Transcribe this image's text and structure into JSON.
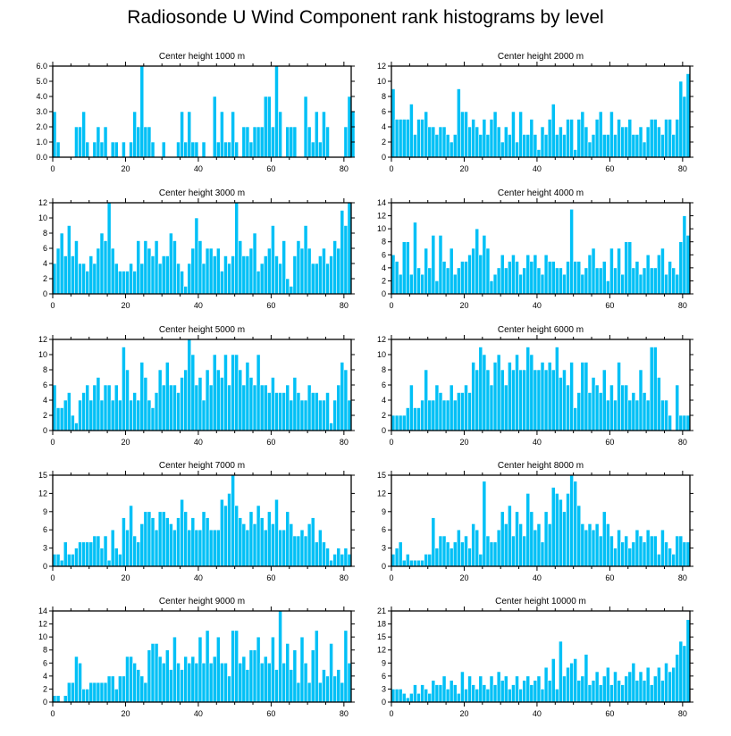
{
  "title": "Radiosonde U Wind Component rank histograms by level",
  "colors": {
    "bar": "#00c0f6",
    "bar_edge": "#ffffff",
    "axis": "#000000"
  },
  "chart_data": [
    {
      "type": "bar",
      "title": "Center height 1000 m",
      "xlabel": "",
      "ylabel": "",
      "xlim": [
        0,
        82
      ],
      "xticks": [
        0,
        20,
        40,
        60,
        80
      ],
      "ylim": [
        0,
        6
      ],
      "yticks": [
        "0.0",
        "1.0",
        "2.0",
        "3.0",
        "4.0",
        "5.0",
        "6.0"
      ],
      "values": [
        3,
        1,
        0,
        0,
        0,
        0,
        2,
        2,
        3,
        1,
        0,
        1,
        2,
        1,
        2,
        0,
        1,
        1,
        0,
        1,
        0,
        1,
        3,
        2,
        6,
        2,
        2,
        1,
        0,
        0,
        1,
        0,
        0,
        0,
        1,
        3,
        1,
        3,
        1,
        1,
        0,
        1,
        0,
        0,
        4,
        1,
        3,
        1,
        1,
        3,
        1,
        0,
        2,
        2,
        1,
        2,
        2,
        2,
        4,
        4,
        2,
        6,
        3,
        0,
        2,
        2,
        2,
        0,
        0,
        4,
        2,
        1,
        3,
        1,
        3,
        2,
        0,
        0,
        0,
        0,
        2,
        4,
        3
      ]
    },
    {
      "type": "bar",
      "title": "Center height 2000 m",
      "xlabel": "",
      "ylabel": "",
      "xlim": [
        0,
        82
      ],
      "xticks": [
        0,
        20,
        40,
        60,
        80
      ],
      "ylim": [
        0,
        12
      ],
      "yticks": [
        "0",
        "2",
        "4",
        "6",
        "8",
        "10",
        "12"
      ],
      "values": [
        9,
        5,
        5,
        5,
        5,
        7,
        3,
        5,
        5,
        6,
        4,
        4,
        3,
        4,
        4,
        3,
        2,
        3,
        9,
        6,
        6,
        4,
        5,
        4,
        3,
        5,
        3,
        5,
        6,
        4,
        2,
        4,
        3,
        6,
        2,
        6,
        3,
        3,
        5,
        3,
        1,
        4,
        3,
        5,
        7,
        3,
        4,
        3,
        5,
        5,
        1,
        5,
        6,
        4,
        2,
        3,
        5,
        6,
        3,
        3,
        6,
        3,
        5,
        4,
        4,
        5,
        3,
        3,
        4,
        2,
        4,
        5,
        5,
        4,
        3,
        5,
        5,
        3,
        5,
        10,
        8,
        11
      ]
    },
    {
      "type": "bar",
      "title": "Center height 3000 m",
      "xlabel": "",
      "ylabel": "",
      "xlim": [
        0,
        82
      ],
      "xticks": [
        0,
        20,
        40,
        60,
        80
      ],
      "ylim": [
        0,
        12
      ],
      "yticks": [
        "0",
        "2",
        "4",
        "6",
        "8",
        "10",
        "12"
      ],
      "values": [
        4,
        6,
        8,
        5,
        9,
        5,
        7,
        4,
        4,
        3,
        5,
        4,
        6,
        8,
        7,
        12,
        6,
        4,
        3,
        3,
        3,
        4,
        3,
        7,
        4,
        7,
        6,
        5,
        7,
        4,
        5,
        5,
        8,
        7,
        4,
        3,
        1,
        4,
        6,
        10,
        7,
        4,
        6,
        6,
        5,
        6,
        3,
        5,
        4,
        5,
        12,
        7,
        5,
        5,
        6,
        8,
        3,
        4,
        5,
        6,
        9,
        5,
        4,
        7,
        2,
        1,
        5,
        7,
        6,
        9,
        6,
        4,
        4,
        5,
        6,
        4,
        5,
        7,
        6,
        11,
        9,
        12
      ]
    },
    {
      "type": "bar",
      "title": "Center height 4000 m",
      "xlabel": "",
      "ylabel": "",
      "xlim": [
        0,
        82
      ],
      "xticks": [
        0,
        20,
        40,
        60,
        80
      ],
      "ylim": [
        0,
        14
      ],
      "yticks": [
        "0",
        "2",
        "4",
        "6",
        "8",
        "10",
        "12",
        "14"
      ],
      "values": [
        6,
        5,
        3,
        8,
        8,
        3,
        11,
        4,
        3,
        7,
        4,
        9,
        2,
        9,
        5,
        4,
        7,
        3,
        4,
        5,
        5,
        6,
        7,
        10,
        6,
        9,
        7,
        2,
        3,
        4,
        6,
        4,
        5,
        6,
        5,
        3,
        4,
        6,
        5,
        6,
        4,
        3,
        6,
        5,
        5,
        4,
        4,
        3,
        5,
        13,
        5,
        5,
        3,
        4,
        6,
        7,
        4,
        4,
        5,
        2,
        7,
        4,
        7,
        3,
        8,
        8,
        4,
        5,
        3,
        4,
        6,
        4,
        4,
        6,
        7,
        3,
        5,
        4,
        3,
        8,
        12,
        9
      ]
    },
    {
      "type": "bar",
      "title": "Center height 5000 m",
      "xlabel": "",
      "ylabel": "",
      "xlim": [
        0,
        82
      ],
      "xticks": [
        0,
        20,
        40,
        60,
        80
      ],
      "ylim": [
        0,
        12
      ],
      "yticks": [
        "0",
        "2",
        "4",
        "6",
        "8",
        "10",
        "12"
      ],
      "values": [
        6,
        3,
        3,
        4,
        5,
        2,
        1,
        4,
        5,
        6,
        4,
        6,
        7,
        4,
        6,
        6,
        4,
        6,
        4,
        11,
        8,
        4,
        5,
        4,
        9,
        7,
        4,
        3,
        5,
        8,
        6,
        9,
        6,
        6,
        5,
        7,
        8,
        12,
        10,
        6,
        7,
        4,
        8,
        6,
        10,
        8,
        7,
        10,
        6,
        10,
        10,
        8,
        6,
        9,
        7,
        6,
        10,
        6,
        6,
        5,
        7,
        5,
        5,
        5,
        6,
        4,
        7,
        5,
        4,
        4,
        6,
        5,
        5,
        4,
        4,
        5,
        1,
        4,
        6,
        9,
        8,
        4
      ]
    },
    {
      "type": "bar",
      "title": "Center height 6000 m",
      "xlabel": "",
      "ylabel": "",
      "xlim": [
        0,
        82
      ],
      "xticks": [
        0,
        20,
        40,
        60,
        80
      ],
      "ylim": [
        0,
        12
      ],
      "yticks": [
        "0",
        "2",
        "4",
        "6",
        "8",
        "10",
        "12"
      ],
      "values": [
        2,
        2,
        2,
        2,
        3,
        6,
        3,
        3,
        4,
        8,
        4,
        4,
        6,
        5,
        4,
        4,
        6,
        4,
        5,
        5,
        6,
        5,
        9,
        8,
        11,
        10,
        8,
        6,
        9,
        10,
        8,
        6,
        9,
        8,
        10,
        8,
        8,
        11,
        10,
        8,
        8,
        9,
        8,
        9,
        8,
        11,
        7,
        8,
        6,
        9,
        3,
        5,
        9,
        9,
        5,
        7,
        6,
        5,
        8,
        4,
        6,
        4,
        9,
        6,
        6,
        4,
        5,
        4,
        8,
        5,
        4,
        11,
        11,
        7,
        4,
        4,
        2,
        0,
        6,
        2,
        2,
        2
      ]
    },
    {
      "type": "bar",
      "title": "Center height 7000 m",
      "xlabel": "",
      "ylabel": "",
      "xlim": [
        0,
        82
      ],
      "xticks": [
        0,
        20,
        40,
        60,
        80
      ],
      "ylim": [
        0,
        15
      ],
      "yticks": [
        "0",
        "3",
        "6",
        "9",
        "12",
        "15"
      ],
      "values": [
        2,
        2,
        1,
        4,
        2,
        2,
        3,
        4,
        4,
        4,
        4,
        5,
        5,
        3,
        5,
        1,
        6,
        3,
        2,
        8,
        6,
        10,
        5,
        4,
        7,
        9,
        9,
        8,
        6,
        9,
        9,
        8,
        7,
        6,
        8,
        11,
        9,
        6,
        8,
        6,
        6,
        9,
        8,
        6,
        6,
        6,
        11,
        10,
        12,
        15,
        10,
        8,
        7,
        6,
        9,
        7,
        10,
        8,
        6,
        9,
        7,
        11,
        6,
        6,
        9,
        7,
        5,
        5,
        6,
        5,
        7,
        8,
        4,
        6,
        4,
        3,
        1,
        2,
        3,
        2,
        3,
        2
      ]
    },
    {
      "type": "bar",
      "title": "Center height 8000 m",
      "xlabel": "",
      "ylabel": "",
      "xlim": [
        0,
        82
      ],
      "xticks": [
        0,
        20,
        40,
        60,
        80
      ],
      "ylim": [
        0,
        15
      ],
      "yticks": [
        "0",
        "3",
        "6",
        "9",
        "12",
        "15"
      ],
      "values": [
        2,
        3,
        4,
        1,
        2,
        1,
        1,
        1,
        1,
        2,
        2,
        8,
        3,
        5,
        5,
        4,
        3,
        4,
        6,
        4,
        5,
        3,
        7,
        6,
        2,
        14,
        5,
        4,
        4,
        6,
        9,
        7,
        10,
        5,
        9,
        7,
        5,
        12,
        9,
        6,
        7,
        4,
        9,
        7,
        13,
        12,
        11,
        9,
        12,
        15,
        14,
        10,
        7,
        6,
        7,
        6,
        7,
        5,
        9,
        7,
        5,
        3,
        6,
        4,
        5,
        3,
        4,
        6,
        5,
        4,
        6,
        5,
        5,
        2,
        6,
        4,
        3,
        2,
        5,
        5,
        4,
        4
      ]
    },
    {
      "type": "bar",
      "title": "Center height 9000 m",
      "xlabel": "",
      "ylabel": "",
      "xlim": [
        0,
        82
      ],
      "xticks": [
        0,
        20,
        40,
        60,
        80
      ],
      "ylim": [
        0,
        14
      ],
      "yticks": [
        "0",
        "2",
        "4",
        "6",
        "8",
        "10",
        "12",
        "14"
      ],
      "values": [
        1,
        1,
        0,
        1,
        3,
        3,
        7,
        6,
        2,
        2,
        3,
        3,
        3,
        3,
        3,
        4,
        4,
        2,
        4,
        4,
        7,
        7,
        6,
        5,
        4,
        3,
        8,
        9,
        9,
        7,
        6,
        8,
        5,
        10,
        6,
        5,
        7,
        6,
        7,
        6,
        10,
        6,
        11,
        6,
        7,
        10,
        6,
        6,
        4,
        11,
        11,
        6,
        7,
        5,
        8,
        8,
        10,
        6,
        7,
        6,
        10,
        5,
        14,
        6,
        9,
        5,
        8,
        3,
        10,
        6,
        3,
        8,
        11,
        3,
        5,
        4,
        9,
        4,
        5,
        3,
        11,
        6
      ]
    },
    {
      "type": "bar",
      "title": "Center height 10000 m",
      "xlabel": "",
      "ylabel": "",
      "xlim": [
        0,
        82
      ],
      "xticks": [
        0,
        20,
        40,
        60,
        80
      ],
      "ylim": [
        0,
        21
      ],
      "yticks": [
        "0",
        "3",
        "6",
        "9",
        "12",
        "15",
        "18",
        "21"
      ],
      "values": [
        3,
        3,
        3,
        2,
        1,
        2,
        4,
        2,
        4,
        3,
        2,
        5,
        4,
        4,
        6,
        3,
        5,
        4,
        2,
        7,
        3,
        6,
        4,
        3,
        6,
        4,
        3,
        6,
        4,
        7,
        5,
        6,
        3,
        4,
        6,
        3,
        5,
        6,
        4,
        5,
        6,
        3,
        8,
        5,
        10,
        3,
        14,
        6,
        8,
        9,
        10,
        5,
        6,
        11,
        4,
        5,
        7,
        4,
        6,
        8,
        4,
        7,
        5,
        4,
        6,
        7,
        9,
        5,
        7,
        5,
        8,
        4,
        6,
        8,
        5,
        9,
        7,
        8,
        11,
        14,
        13,
        19
      ]
    }
  ]
}
